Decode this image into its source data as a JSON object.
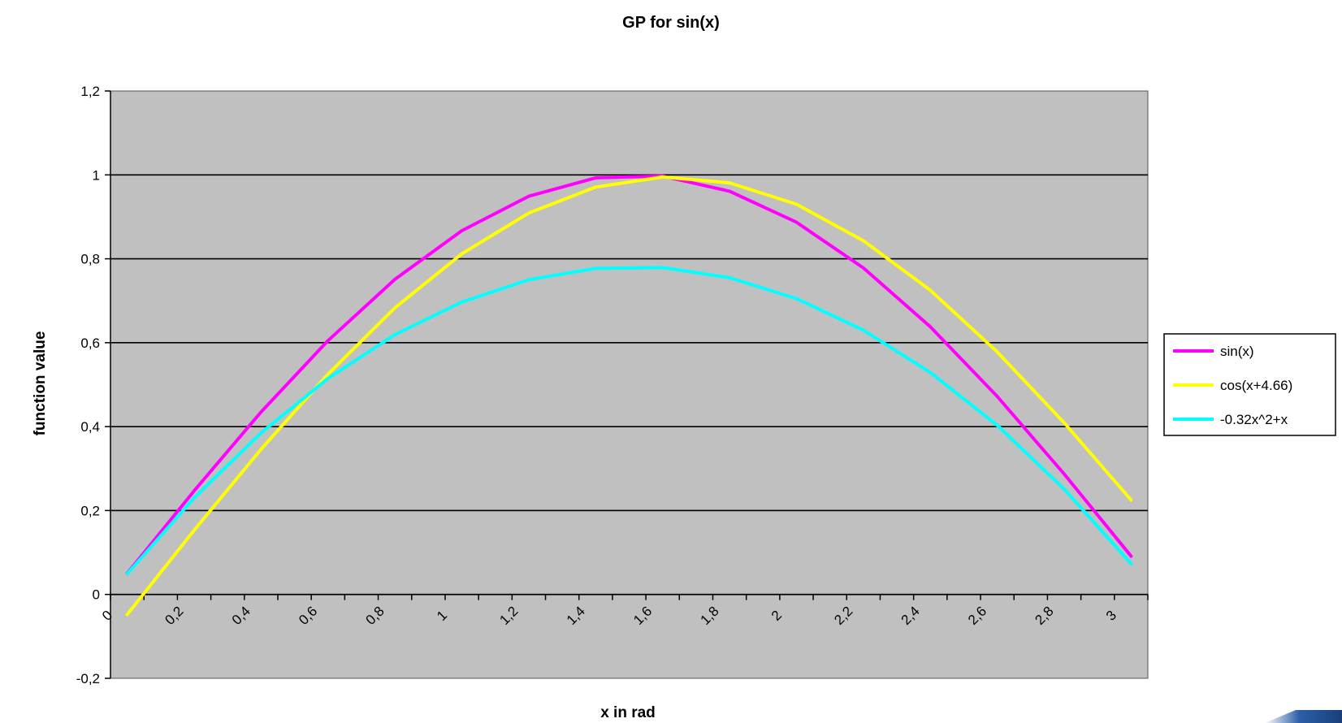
{
  "chart_data": {
    "type": "line",
    "title": "GP for sin(x)",
    "xlabel": "x in rad",
    "ylabel": "function value",
    "xlim": [
      0,
      3.1
    ],
    "ylim": [
      -0.2,
      1.2
    ],
    "x_ticks": [
      0,
      0.2,
      0.4,
      0.6,
      0.8,
      1,
      1.2,
      1.4,
      1.6,
      1.8,
      2,
      2.2,
      2.4,
      2.6,
      2.8,
      3
    ],
    "x_tick_labels": [
      "0",
      "0,2",
      "0,4",
      "0,6",
      "0,8",
      "1",
      "1,2",
      "1,4",
      "1,6",
      "1,8",
      "2",
      "2,2",
      "2,4",
      "2,6",
      "2,8",
      "3"
    ],
    "y_ticks": [
      -0.2,
      0,
      0.2,
      0.4,
      0.6,
      0.8,
      1,
      1.2
    ],
    "y_tick_labels": [
      "-0,2",
      "0",
      "0,2",
      "0,4",
      "0,6",
      "0,8",
      "1",
      "1,2"
    ],
    "grid": "horizontal major gridlines",
    "plot_background": "#c0c0c0",
    "legend_position": "right",
    "x": [
      0.05,
      0.25,
      0.45,
      0.65,
      0.85,
      1.05,
      1.25,
      1.45,
      1.65,
      1.85,
      2.05,
      2.25,
      2.45,
      2.65,
      2.85,
      3.05
    ],
    "series": [
      {
        "name": "sin(x)",
        "color": "#ff00ff",
        "values": [
          0.05,
          0.247,
          0.435,
          0.605,
          0.751,
          0.867,
          0.949,
          0.993,
          0.997,
          0.961,
          0.887,
          0.778,
          0.638,
          0.472,
          0.287,
          0.091
        ]
      },
      {
        "name": "cos(x+4.66)",
        "color": "#ffff00",
        "values": [
          -0.048,
          0.153,
          0.346,
          0.525,
          0.683,
          0.812,
          0.909,
          0.971,
          0.995,
          0.981,
          0.93,
          0.843,
          0.725,
          0.578,
          0.409,
          0.225
        ]
      },
      {
        "name": "-0.32x^2+x",
        "color": "#00ffff",
        "values": [
          0.049,
          0.23,
          0.385,
          0.515,
          0.619,
          0.697,
          0.75,
          0.777,
          0.779,
          0.755,
          0.705,
          0.63,
          0.529,
          0.403,
          0.251,
          0.073
        ]
      }
    ]
  }
}
